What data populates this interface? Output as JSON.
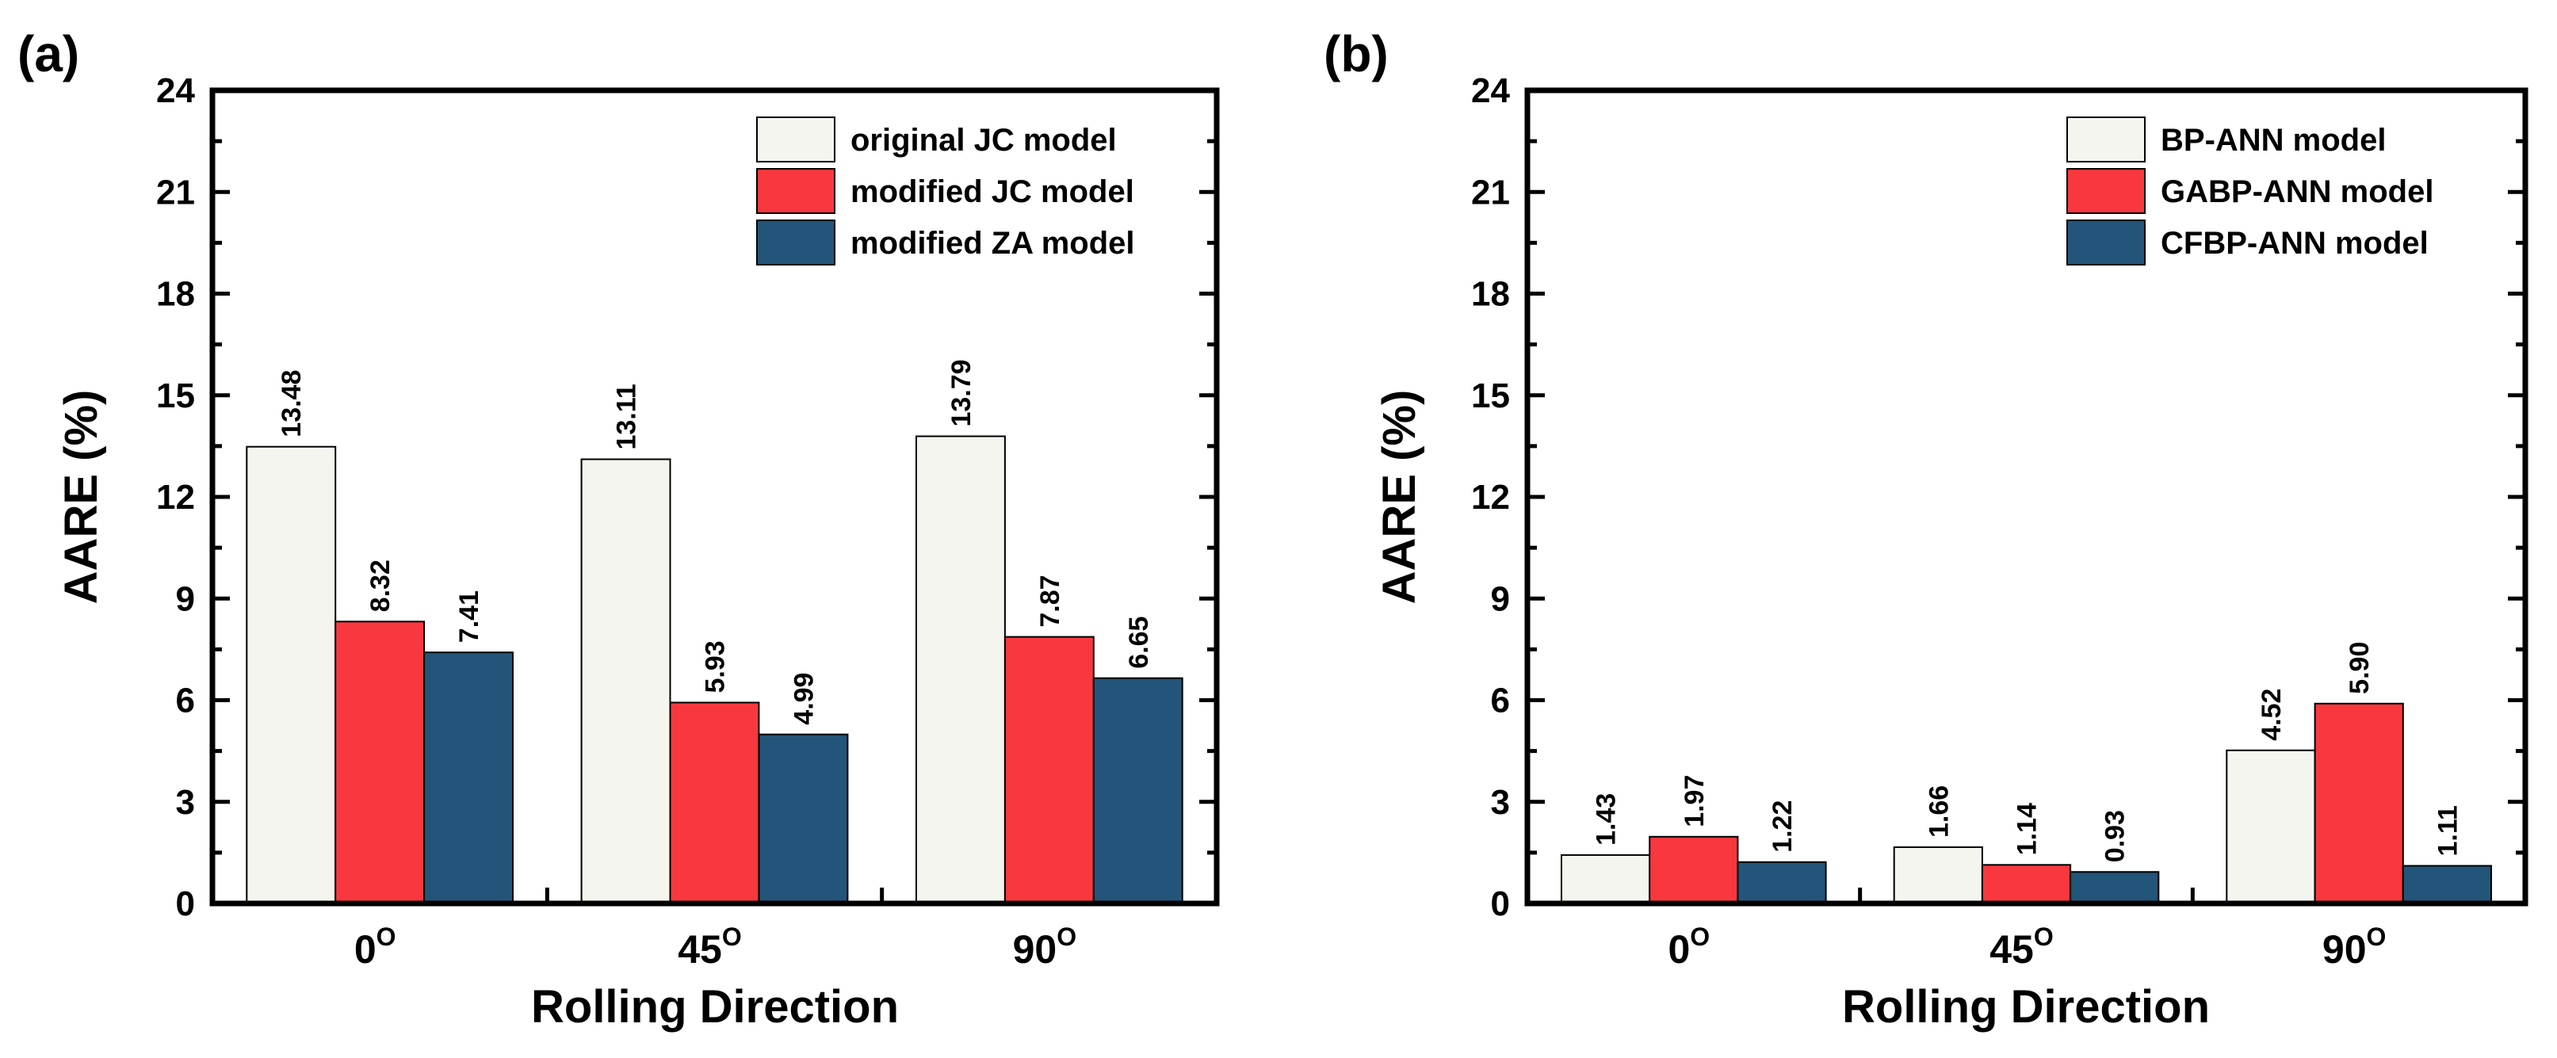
{
  "chart_data": [
    {
      "type": "bar",
      "panel_label": "(a)",
      "categories": [
        "0",
        "45",
        "90"
      ],
      "category_superscript": "O",
      "xlabel": "Rolling Direction",
      "ylabel": "AARE (%)",
      "ylim": [
        0,
        24
      ],
      "yticks": [
        "0",
        "3",
        "6",
        "9",
        "12",
        "15",
        "18",
        "21",
        "24"
      ],
      "legend_position": "top-right",
      "series": [
        {
          "name": "original JC model",
          "color": "#f5f5f0",
          "values": [
            13.48,
            13.11,
            13.79
          ],
          "labels": [
            "13.48",
            "13.11",
            "13.79"
          ]
        },
        {
          "name": "modified JC model",
          "color": "#f8383e",
          "values": [
            8.32,
            5.93,
            7.87
          ],
          "labels": [
            "8.32",
            "5.93",
            "7.87"
          ]
        },
        {
          "name": "modified ZA model",
          "color": "#225579",
          "values": [
            7.41,
            4.99,
            6.65
          ],
          "labels": [
            "7.41",
            "4.99",
            "6.65"
          ]
        }
      ]
    },
    {
      "type": "bar",
      "panel_label": "(b)",
      "categories": [
        "0",
        "45",
        "90"
      ],
      "category_superscript": "O",
      "xlabel": "Rolling Direction",
      "ylabel": "AARE (%)",
      "ylim": [
        0,
        24
      ],
      "yticks": [
        "0",
        "3",
        "6",
        "9",
        "12",
        "15",
        "18",
        "21",
        "24"
      ],
      "legend_position": "top-right",
      "series": [
        {
          "name": "BP-ANN model",
          "color": "#f5f5f0",
          "values": [
            1.43,
            1.66,
            4.52
          ],
          "labels": [
            "1.43",
            "1.66",
            "4.52"
          ]
        },
        {
          "name": "GABP-ANN model",
          "color": "#f8383e",
          "values": [
            1.97,
            1.14,
            5.9
          ],
          "labels": [
            "1.97",
            "1.14",
            "5.90"
          ]
        },
        {
          "name": "CFBP-ANN model",
          "color": "#225579",
          "values": [
            1.22,
            0.93,
            1.11
          ],
          "labels": [
            "1.22",
            "0.93",
            "1.11"
          ]
        }
      ]
    }
  ]
}
